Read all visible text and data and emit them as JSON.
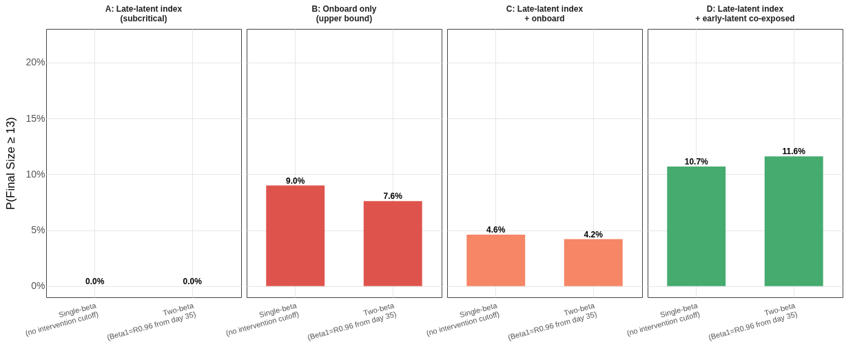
{
  "chart_data": [
    {
      "type": "bar",
      "title": "A: Late-latent index\n(subcritical)",
      "ylabel": "P(Final Size ≥ 13)",
      "categories": [
        "Single-beta\n(no intervention cutoff)",
        "Two-beta\n(Beta1=R0.96 from day 35)"
      ],
      "values": [
        0,
        0
      ],
      "value_labels": [
        "0.0%",
        "0.0%"
      ],
      "ylim": [
        -1,
        23
      ],
      "yticks": [
        {
          "value": 0,
          "label": "0%"
        },
        {
          "value": 5,
          "label": "5%"
        },
        {
          "value": 10,
          "label": "10%"
        },
        {
          "value": 15,
          "label": "15%"
        },
        {
          "value": 20,
          "label": "20%"
        }
      ],
      "grid": true
    },
    {
      "type": "bar",
      "title": "B: Onboard only\n(upper bound)",
      "categories": [
        "Single-beta\n(no intervention cutoff)",
        "Two-beta\n(Beta1=R0.96 from day 35)"
      ],
      "values": [
        9.0,
        7.6
      ],
      "value_labels": [
        "9.0%",
        "7.6%"
      ],
      "color": "#dc4b43",
      "ylim": [
        -1,
        23
      ],
      "yticks": [
        {
          "value": 0,
          "label": null
        },
        {
          "value": 5,
          "label": null
        },
        {
          "value": 10,
          "label": null
        },
        {
          "value": 15,
          "label": null
        },
        {
          "value": 20,
          "label": null
        }
      ],
      "grid": true,
      "tick_labels": "x"
    },
    {
      "type": "bar",
      "title": "C: Late-latent index\n+ onboard",
      "categories": [
        "Single-beta\n(no intervention cutoff)",
        "Two-beta\n(Beta1=R0.96 from day 35)"
      ],
      "values": [
        4.6,
        4.2
      ],
      "value_labels": [
        "4.6%",
        "4.2%"
      ],
      "color": "#f4805e",
      "ylim": [
        -1,
        23
      ],
      "yticks": [
        {
          "value": 0,
          "label": null
        },
        {
          "value": 5,
          "label": null
        },
        {
          "value": 10,
          "label": null
        },
        {
          "value": 15,
          "label": null
        },
        {
          "value": 20,
          "label": null
        }
      ],
      "grid": true,
      "tick_labels": "x"
    },
    {
      "type": "bar",
      "title": "D: Late-latent index\n+ early-latent co-exposed",
      "categories": [
        "Single-beta\n(no intervention cutoff)",
        "Two-beta\n(Beta1=R0.96 from day 35)"
      ],
      "values": [
        10.7,
        11.6
      ],
      "value_labels": [
        "10.7%",
        "11.6%"
      ],
      "color": "#3ba667",
      "ylim": [
        -1,
        23
      ],
      "yticks": [
        {
          "value": 0,
          "label": null
        },
        {
          "value": 5,
          "label": null
        },
        {
          "value": 10,
          "label": null
        },
        {
          "value": 15,
          "label": null
        },
        {
          "value": 20,
          "label": null
        }
      ],
      "grid": true,
      "tick_labels": "x"
    }
  ]
}
